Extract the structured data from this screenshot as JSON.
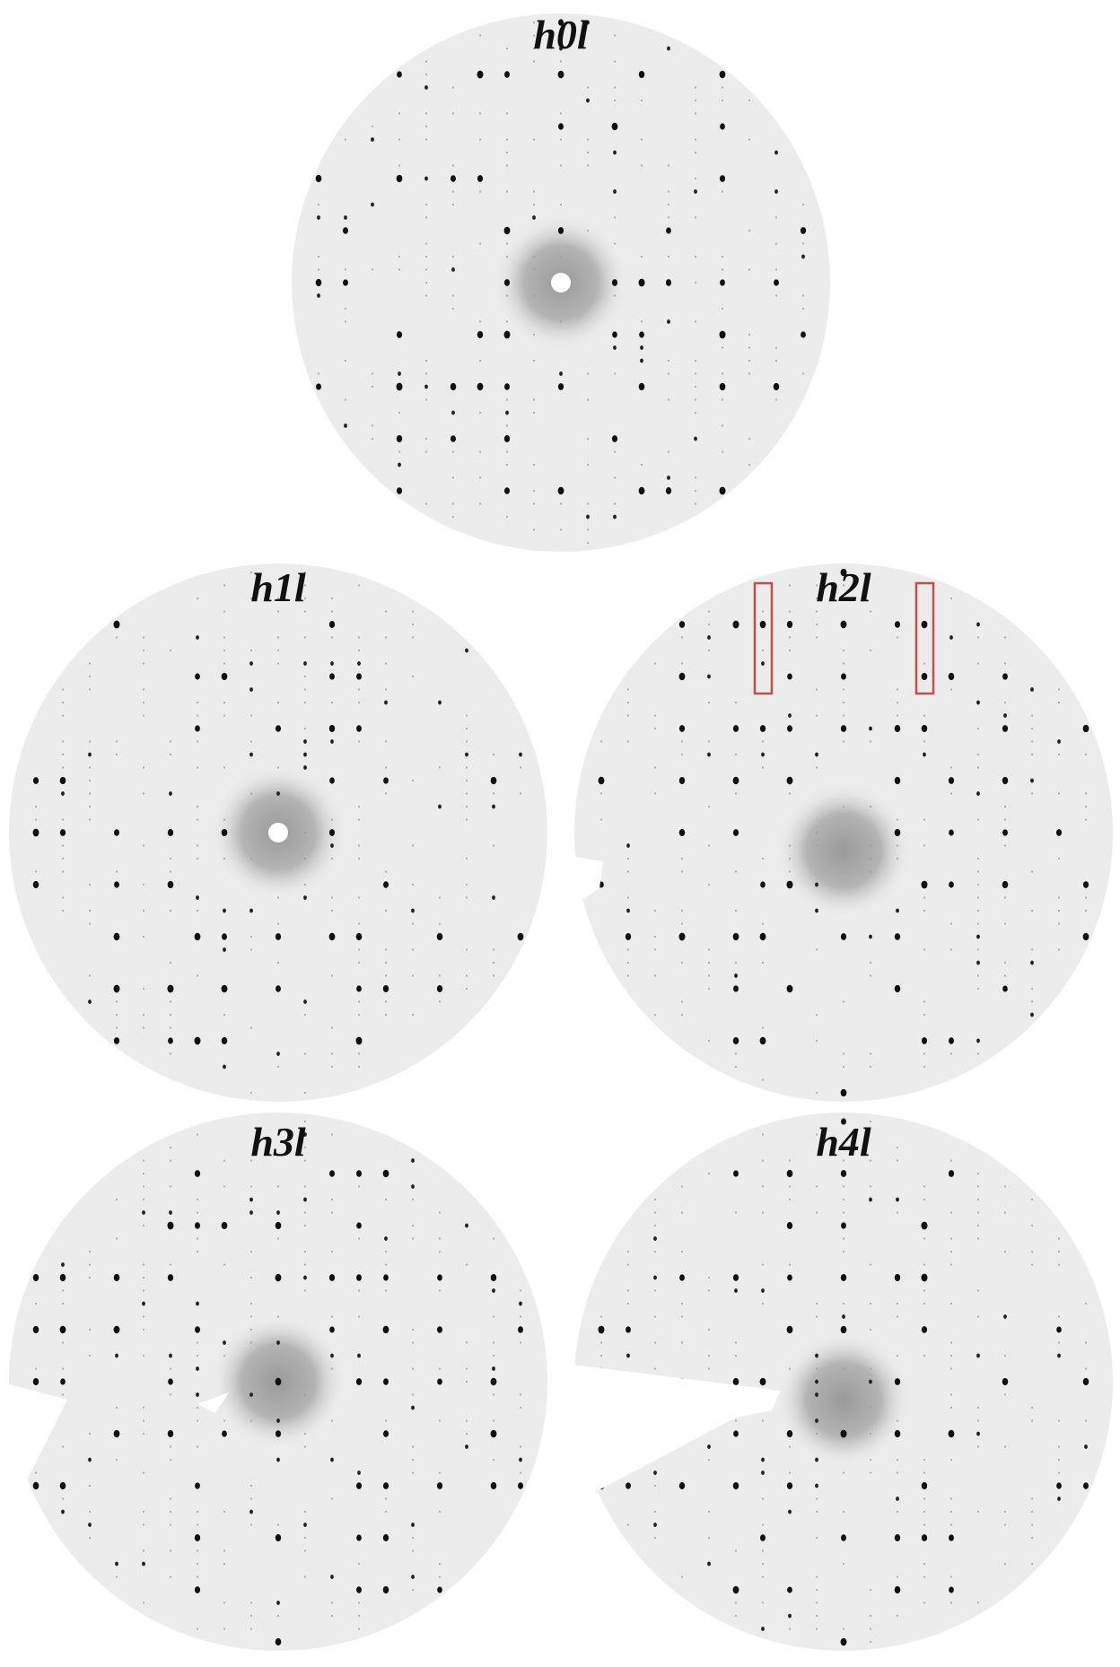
{
  "panels": [
    {
      "label": "h0l"
    },
    {
      "label": "h1l"
    },
    {
      "label": "h2l"
    },
    {
      "label": "h3l"
    },
    {
      "label": "h4l"
    }
  ]
}
